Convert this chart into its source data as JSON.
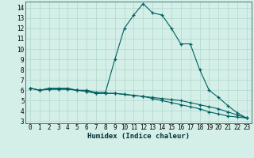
{
  "xlabel": "Humidex (Indice chaleur)",
  "xlim": [
    -0.5,
    23.5
  ],
  "ylim": [
    2.8,
    14.6
  ],
  "yticks": [
    3,
    4,
    5,
    6,
    7,
    8,
    9,
    10,
    11,
    12,
    13,
    14
  ],
  "xticks": [
    0,
    1,
    2,
    3,
    4,
    5,
    6,
    7,
    8,
    9,
    10,
    11,
    12,
    13,
    14,
    15,
    16,
    17,
    18,
    19,
    20,
    21,
    22,
    23
  ],
  "bg_color": "#d4eee8",
  "line_color": "#006060",
  "grid_color": "#b0d8cc",
  "line1_x": [
    0,
    1,
    2,
    3,
    4,
    5,
    6,
    7,
    8,
    9,
    10,
    11,
    12,
    13,
    14,
    15,
    16,
    17,
    18,
    19,
    20,
    21,
    22,
    23
  ],
  "line1_y": [
    6.2,
    6.0,
    6.2,
    6.2,
    6.2,
    6.0,
    6.0,
    5.8,
    5.8,
    9.0,
    12.0,
    13.3,
    14.4,
    13.5,
    13.3,
    12.0,
    10.5,
    10.5,
    8.0,
    6.0,
    5.3,
    4.5,
    3.8,
    3.3
  ],
  "line2_x": [
    0,
    1,
    2,
    3,
    4,
    5,
    6,
    7,
    8,
    9,
    10,
    11,
    12,
    13,
    14,
    15,
    16,
    17,
    18,
    19,
    20,
    21,
    22,
    23
  ],
  "line2_y": [
    6.2,
    6.0,
    6.1,
    6.1,
    6.1,
    6.0,
    5.9,
    5.7,
    5.7,
    5.7,
    5.6,
    5.5,
    5.4,
    5.3,
    5.2,
    5.1,
    5.0,
    4.8,
    4.6,
    4.4,
    4.2,
    3.9,
    3.6,
    3.3
  ],
  "line3_x": [
    0,
    1,
    2,
    3,
    4,
    5,
    6,
    7,
    8,
    9,
    10,
    11,
    12,
    13,
    14,
    15,
    16,
    17,
    18,
    19,
    20,
    21,
    22,
    23
  ],
  "line3_y": [
    6.2,
    6.0,
    6.1,
    6.1,
    6.1,
    6.0,
    5.9,
    5.7,
    5.7,
    5.7,
    5.6,
    5.5,
    5.4,
    5.2,
    5.0,
    4.8,
    4.6,
    4.4,
    4.2,
    3.9,
    3.7,
    3.5,
    3.4,
    3.3
  ],
  "tick_fontsize": 5.5,
  "xlabel_fontsize": 6.5,
  "marker": "+",
  "markersize": 3,
  "linewidth": 0.8
}
